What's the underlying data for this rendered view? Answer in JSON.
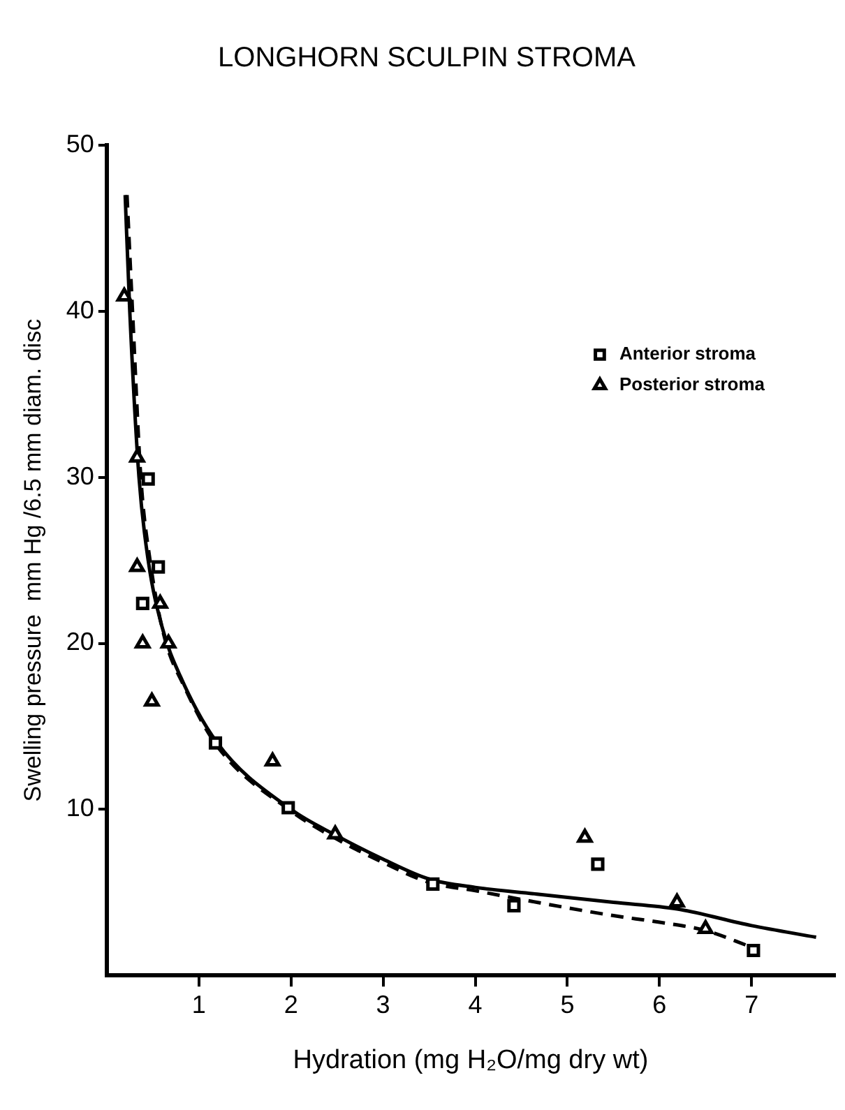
{
  "chart_data": {
    "type": "scatter",
    "title": "LONGHORN SCULPIN STROMA",
    "xlabel": "Hydration (mg H₂O/mg dry wt)",
    "ylabel": "Swelling pressure  mm Hg /6.5 mm diam. disc",
    "xlim": [
      0,
      7.9
    ],
    "ylim": [
      0,
      50
    ],
    "xticks": [
      1,
      2,
      3,
      4,
      5,
      6,
      7
    ],
    "yticks": [
      10,
      20,
      30,
      40,
      50
    ],
    "grid": false,
    "legend": "top right",
    "series": [
      {
        "name": "Anterior stroma",
        "marker": "square",
        "color": "#000000",
        "x": [
          0.45,
          0.56,
          0.39,
          1.18,
          1.97,
          3.54,
          4.42,
          5.33,
          7.02
        ],
        "values": [
          29.9,
          24.6,
          22.4,
          14.0,
          10.1,
          5.5,
          4.2,
          6.7,
          1.5
        ]
      },
      {
        "name": "Posterior stroma",
        "marker": "triangle",
        "color": "#000000",
        "x": [
          0.19,
          0.33,
          0.33,
          0.58,
          0.39,
          0.67,
          0.49,
          1.8,
          2.48,
          5.19,
          6.19,
          6.5
        ],
        "values": [
          40.9,
          31.2,
          24.6,
          22.4,
          20.0,
          20.0,
          16.5,
          12.9,
          8.5,
          8.3,
          4.4,
          2.8
        ]
      },
      {
        "type": "line",
        "marker": "none",
        "line_style": "solid",
        "color": "#000000",
        "x": [
          0.2,
          0.25,
          0.35,
          0.45,
          0.6,
          0.8,
          1.2,
          2,
          2.5,
          3,
          3.5,
          4,
          4.67,
          5.5,
          6.19,
          7,
          7.7
        ],
        "values": [
          47,
          40,
          30,
          25,
          21,
          18,
          14,
          10,
          8.4,
          7,
          5.8,
          5.3,
          4.9,
          4.4,
          4.0,
          3.0,
          2.3
        ]
      },
      {
        "type": "line",
        "marker": "none",
        "line_style": "dashed",
        "color": "#000000",
        "x": [
          0.22,
          0.28,
          0.37,
          0.47,
          0.62,
          0.85,
          1.2,
          2,
          2.5,
          3,
          3.5,
          4,
          4.67,
          5.5,
          6,
          6.5,
          7
        ],
        "values": [
          47,
          40,
          30,
          25,
          20.5,
          17.3,
          13.8,
          9.9,
          8.2,
          6.8,
          5.6,
          5.1,
          4.4,
          3.6,
          3.2,
          2.7,
          1.7
        ]
      }
    ]
  }
}
